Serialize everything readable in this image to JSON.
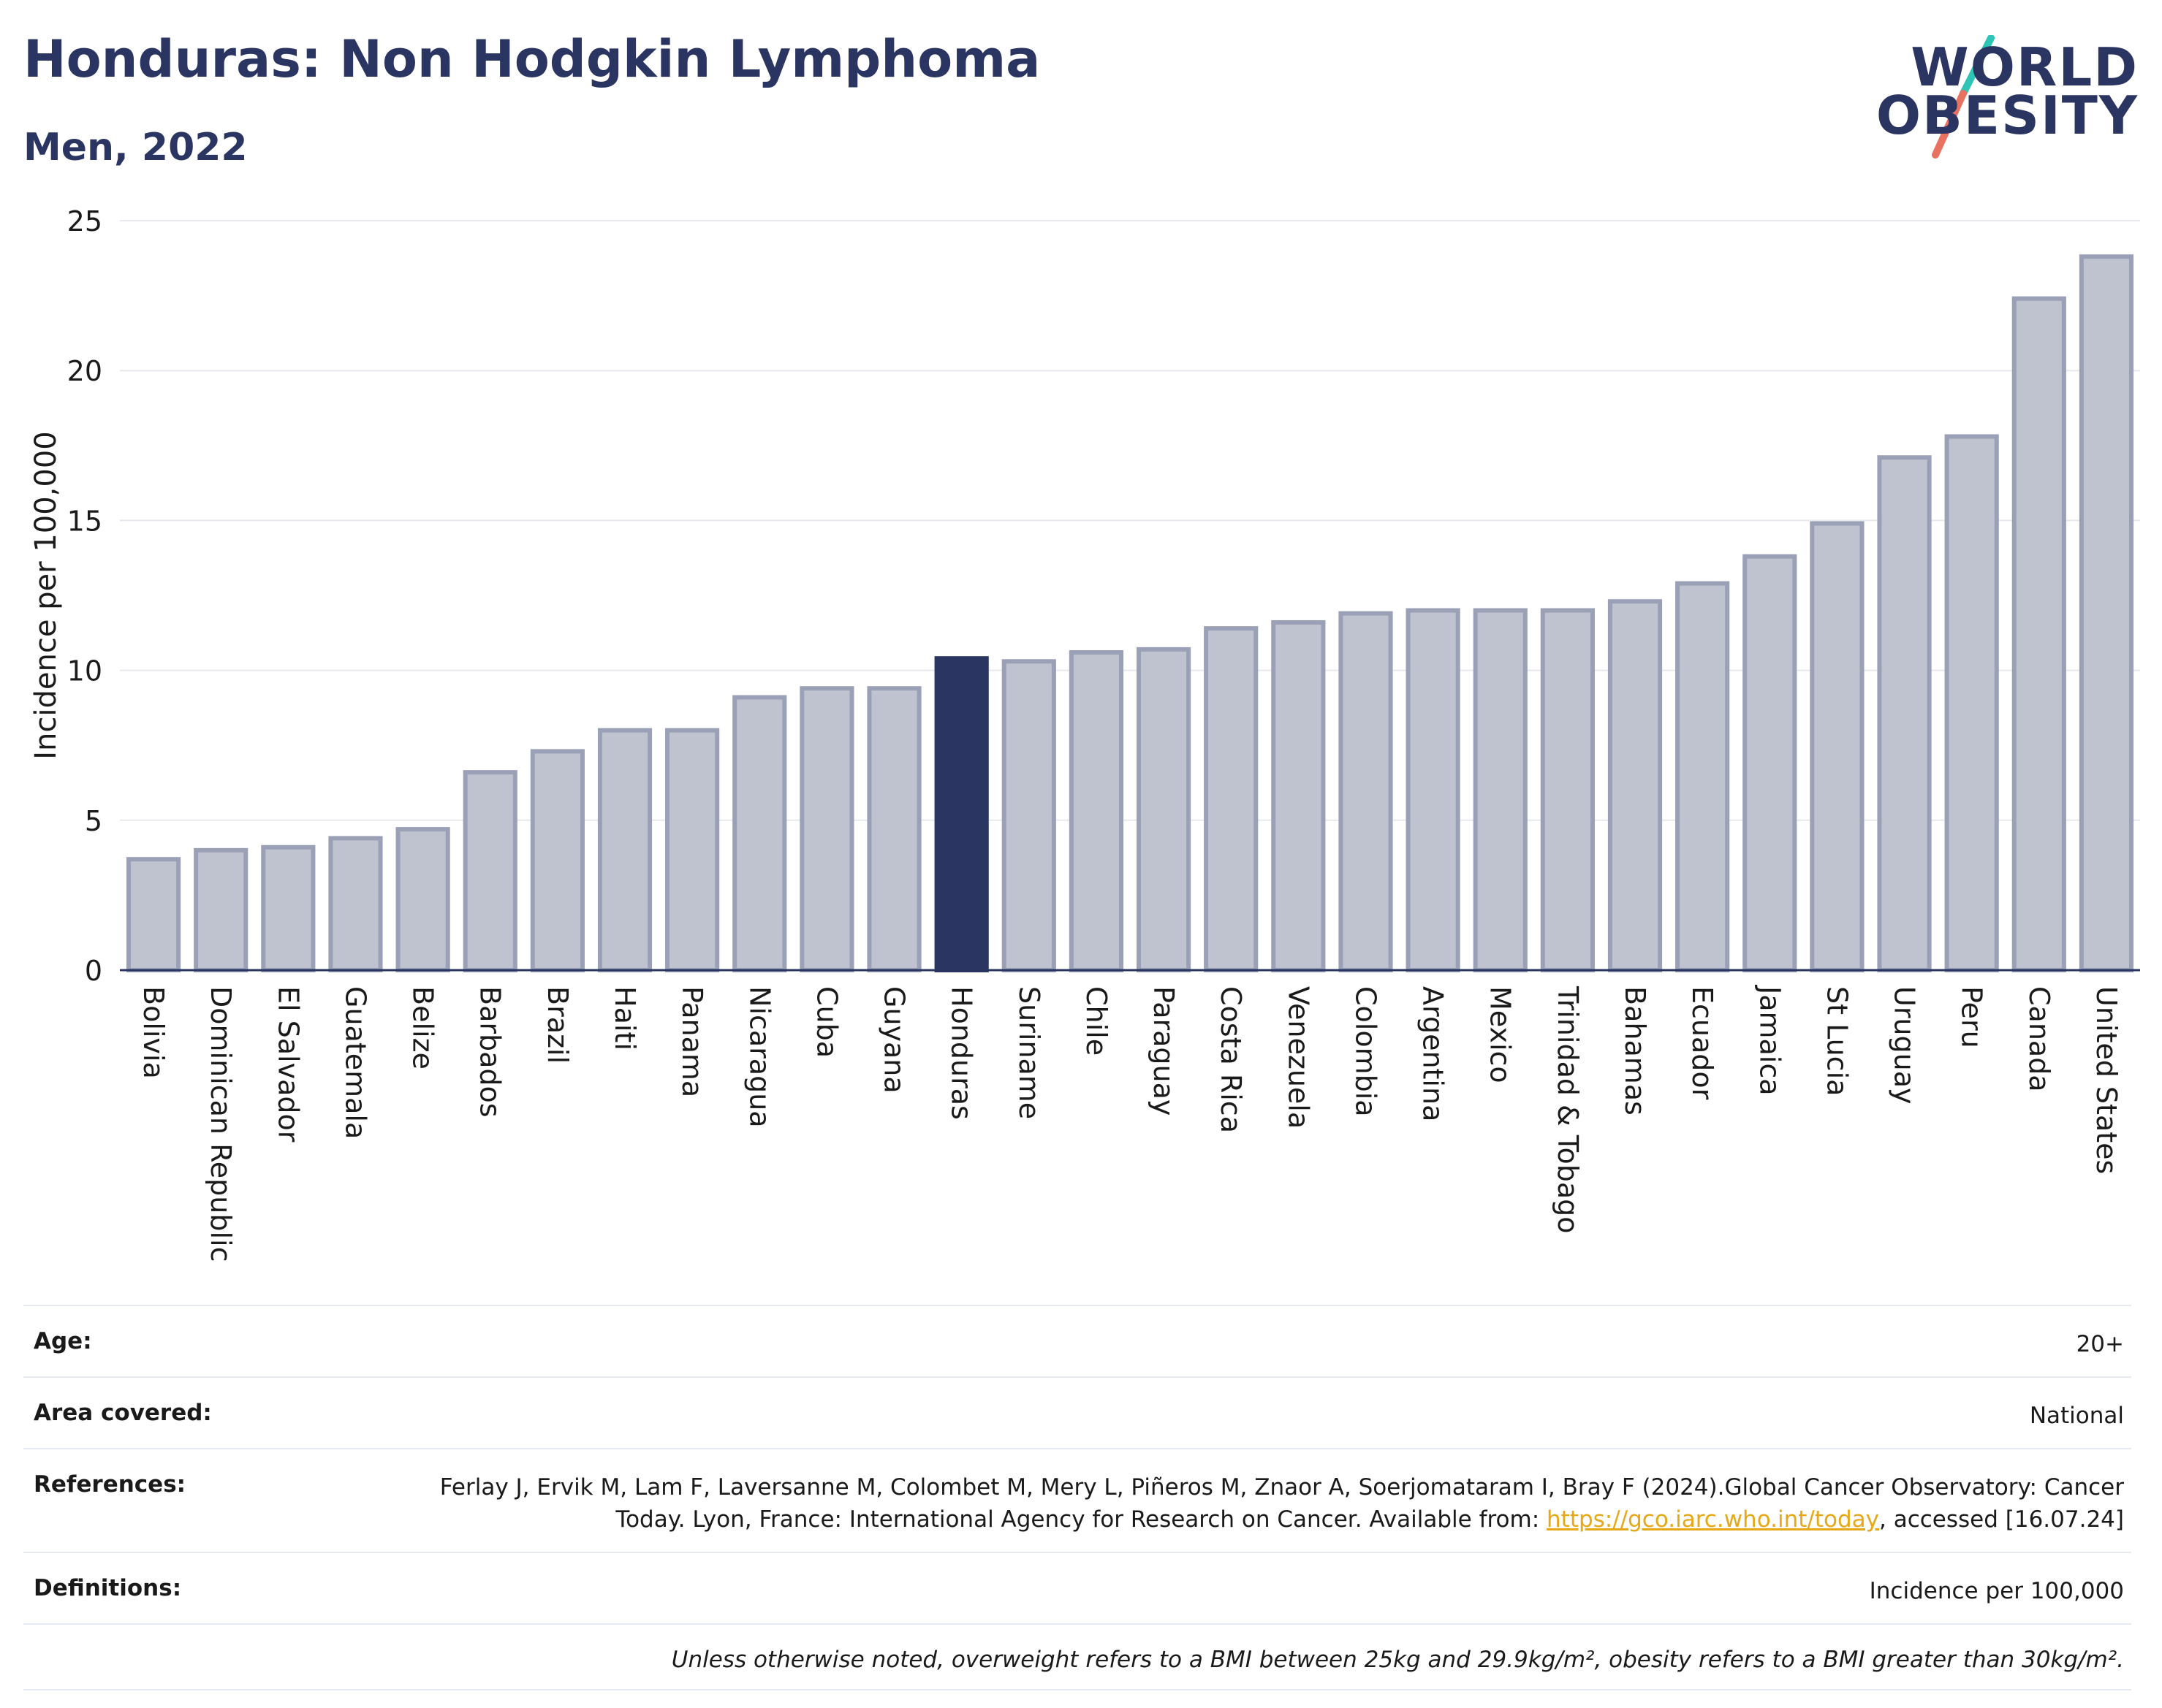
{
  "header": {
    "title": "Honduras: Non Hodgkin Lymphoma",
    "subtitle": "Men, 2022"
  },
  "logo": {
    "line1": "WORLD",
    "line2": "OBESITY",
    "colors": {
      "text": "#2b3562",
      "slash_top": "#2ec4b6",
      "slash_bottom": "#e8715f"
    }
  },
  "chart_data": {
    "type": "bar",
    "ylabel": "Incidence per 100,000",
    "xlabel": "",
    "ylim": [
      0,
      25
    ],
    "yticks": [
      0,
      5,
      10,
      15,
      20,
      25
    ],
    "grid": true,
    "highlight": "Honduras",
    "colors": {
      "bar": "#bfc3d0",
      "bar_border": "#9aa0b6",
      "highlight": "#2b3562",
      "grid": "#e6e8ee",
      "axis": "#2b3562"
    },
    "categories": [
      "Bolivia",
      "Dominican Republic",
      "El Salvador",
      "Guatemala",
      "Belize",
      "Barbados",
      "Brazil",
      "Haiti",
      "Panama",
      "Nicaragua",
      "Cuba",
      "Guyana",
      "Honduras",
      "Suriname",
      "Chile",
      "Paraguay",
      "Costa Rica",
      "Venezuela",
      "Colombia",
      "Argentina",
      "Mexico",
      "Trinidad & Tobago",
      "Bahamas",
      "Ecuador",
      "Jamaica",
      "St Lucia",
      "Uruguay",
      "Peru",
      "Canada",
      "United States"
    ],
    "values": [
      3.7,
      4.0,
      4.1,
      4.4,
      4.7,
      6.6,
      7.3,
      8.0,
      8.0,
      9.1,
      9.4,
      9.4,
      10.4,
      10.3,
      10.6,
      10.7,
      11.4,
      11.6,
      11.9,
      12.0,
      12.0,
      12.0,
      12.3,
      12.9,
      13.8,
      14.9,
      17.1,
      17.8,
      22.4,
      23.8
    ]
  },
  "meta": {
    "age_label": "Age:",
    "age_value": "20+",
    "area_label": "Area covered:",
    "area_value": "National",
    "references_label": "References:",
    "references_text": "Ferlay J, Ervik M, Lam F, Laversanne M, Colombet M, Mery L, Piñeros M, Znaor A, Soerjomataram I, Bray F (2024).Global Cancer Observatory: Cancer Today. Lyon, France: International Agency for Research on Cancer. Available from: ",
    "references_link": "https://gco.iarc.who.int/today",
    "references_suffix": ", accessed [16.07.24]",
    "definitions_label": "Definitions:",
    "definitions_value": "Incidence per 100,000",
    "note": "Unless otherwise noted, overweight refers to a BMI between 25kg and 29.9kg/m², obesity refers to a BMI greater than 30kg/m²."
  }
}
